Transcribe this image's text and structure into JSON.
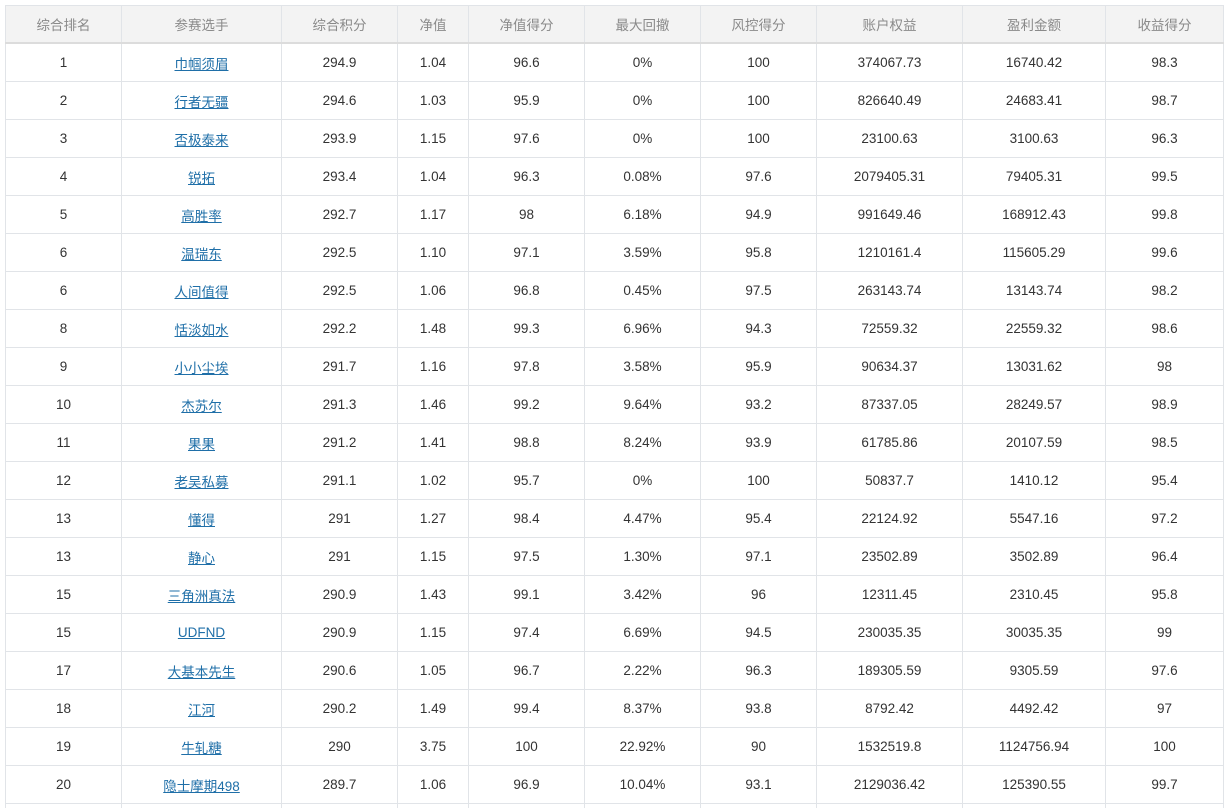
{
  "table": {
    "columns": [
      "综合排名",
      "参赛选手",
      "综合积分",
      "净值",
      "净值得分",
      "最大回撤",
      "风控得分",
      "账户权益",
      "盈利金额",
      "收益得分"
    ],
    "rows": [
      [
        "1",
        "巾帼须眉",
        "294.9",
        "1.04",
        "96.6",
        "0%",
        "100",
        "374067.73",
        "16740.42",
        "98.3"
      ],
      [
        "2",
        "行者无疆",
        "294.6",
        "1.03",
        "95.9",
        "0%",
        "100",
        "826640.49",
        "24683.41",
        "98.7"
      ],
      [
        "3",
        "否极泰来",
        "293.9",
        "1.15",
        "97.6",
        "0%",
        "100",
        "23100.63",
        "3100.63",
        "96.3"
      ],
      [
        "4",
        "锐拓",
        "293.4",
        "1.04",
        "96.3",
        "0.08%",
        "97.6",
        "2079405.31",
        "79405.31",
        "99.5"
      ],
      [
        "5",
        "高胜率",
        "292.7",
        "1.17",
        "98",
        "6.18%",
        "94.9",
        "991649.46",
        "168912.43",
        "99.8"
      ],
      [
        "6",
        "温瑞东",
        "292.5",
        "1.10",
        "97.1",
        "3.59%",
        "95.8",
        "1210161.4",
        "115605.29",
        "99.6"
      ],
      [
        "6",
        "人间值得",
        "292.5",
        "1.06",
        "96.8",
        "0.45%",
        "97.5",
        "263143.74",
        "13143.74",
        "98.2"
      ],
      [
        "8",
        "恬淡如水",
        "292.2",
        "1.48",
        "99.3",
        "6.96%",
        "94.3",
        "72559.32",
        "22559.32",
        "98.6"
      ],
      [
        "9",
        "小小尘埃",
        "291.7",
        "1.16",
        "97.8",
        "3.58%",
        "95.9",
        "90634.37",
        "13031.62",
        "98"
      ],
      [
        "10",
        "杰苏尔",
        "291.3",
        "1.46",
        "99.2",
        "9.64%",
        "93.2",
        "87337.05",
        "28249.57",
        "98.9"
      ],
      [
        "11",
        "果果",
        "291.2",
        "1.41",
        "98.8",
        "8.24%",
        "93.9",
        "61785.86",
        "20107.59",
        "98.5"
      ],
      [
        "12",
        "老吴私募",
        "291.1",
        "1.02",
        "95.7",
        "0%",
        "100",
        "50837.7",
        "1410.12",
        "95.4"
      ],
      [
        "13",
        "懂得",
        "291",
        "1.27",
        "98.4",
        "4.47%",
        "95.4",
        "22124.92",
        "5547.16",
        "97.2"
      ],
      [
        "13",
        "静心",
        "291",
        "1.15",
        "97.5",
        "1.30%",
        "97.1",
        "23502.89",
        "3502.89",
        "96.4"
      ],
      [
        "15",
        "三角洲真法",
        "290.9",
        "1.43",
        "99.1",
        "3.42%",
        "96",
        "12311.45",
        "2310.45",
        "95.8"
      ],
      [
        "15",
        "UDFND",
        "290.9",
        "1.15",
        "97.4",
        "6.69%",
        "94.5",
        "230035.35",
        "30035.35",
        "99"
      ],
      [
        "17",
        "大基本先生",
        "290.6",
        "1.05",
        "96.7",
        "2.22%",
        "96.3",
        "189305.59",
        "9305.59",
        "97.6"
      ],
      [
        "18",
        "江河",
        "290.2",
        "1.49",
        "99.4",
        "8.37%",
        "93.8",
        "8792.42",
        "4492.42",
        "97"
      ],
      [
        "19",
        "牛轧糖",
        "290",
        "3.75",
        "100",
        "22.92%",
        "90",
        "1532519.8",
        "1124756.94",
        "100"
      ],
      [
        "20",
        "隐士摩期498",
        "289.7",
        "1.06",
        "96.9",
        "10.04%",
        "93.1",
        "2129036.42",
        "125390.55",
        "99.7"
      ]
    ]
  }
}
